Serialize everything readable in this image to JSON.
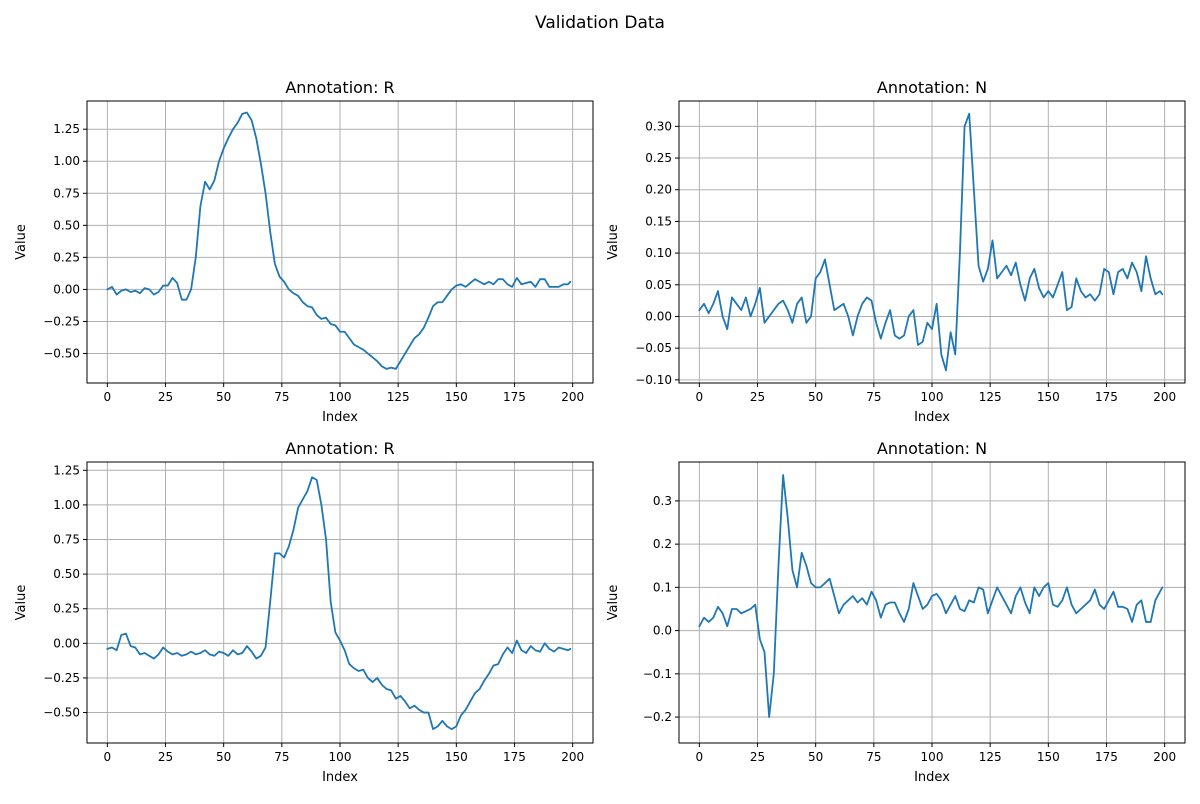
{
  "figure": {
    "suptitle": "Validation Data"
  },
  "chart_data": [
    {
      "type": "line",
      "title": "Annotation: R",
      "xlabel": "Index",
      "ylabel": "Value",
      "xlim": [
        -8.75,
        208.75
      ],
      "ylim": [
        -0.73,
        1.47
      ],
      "xticks": [
        0,
        25,
        50,
        75,
        100,
        125,
        150,
        175,
        200
      ],
      "xtick_labels": [
        "0",
        "25",
        "50",
        "75",
        "100",
        "125",
        "150",
        "175",
        "200"
      ],
      "yticks": [
        -0.5,
        -0.25,
        0.0,
        0.25,
        0.5,
        0.75,
        1.0,
        1.25
      ],
      "ytick_labels": [
        "−0.50",
        "−0.25",
        "0.00",
        "0.25",
        "0.50",
        "0.75",
        "1.00",
        "1.25"
      ],
      "grid": true,
      "series": [
        {
          "x": [
            0,
            2,
            4,
            6,
            8,
            10,
            12,
            14,
            16,
            18,
            20,
            22,
            24,
            26,
            28,
            30,
            32,
            34,
            36,
            38,
            40,
            42,
            44,
            46,
            48,
            50,
            52,
            54,
            56,
            58,
            60,
            62,
            64,
            66,
            68,
            70,
            72,
            74,
            76,
            78,
            80,
            82,
            84,
            86,
            88,
            90,
            92,
            94,
            96,
            98,
            100,
            102,
            104,
            106,
            108,
            110,
            112,
            114,
            116,
            118,
            120,
            122,
            124,
            126,
            128,
            130,
            132,
            134,
            136,
            138,
            140,
            142,
            144,
            146,
            148,
            150,
            152,
            154,
            156,
            158,
            160,
            162,
            164,
            166,
            168,
            170,
            172,
            174,
            176,
            178,
            180,
            182,
            184,
            186,
            188,
            190,
            192,
            194,
            196,
            198,
            199
          ],
          "y": [
            0.0,
            0.02,
            -0.04,
            -0.01,
            0.0,
            -0.02,
            -0.01,
            -0.03,
            0.01,
            0.0,
            -0.04,
            -0.02,
            0.03,
            0.03,
            0.09,
            0.05,
            -0.08,
            -0.08,
            0.0,
            0.25,
            0.65,
            0.84,
            0.78,
            0.85,
            1.0,
            1.1,
            1.18,
            1.25,
            1.3,
            1.37,
            1.38,
            1.32,
            1.18,
            0.98,
            0.75,
            0.45,
            0.2,
            0.1,
            0.06,
            0.0,
            -0.03,
            -0.05,
            -0.1,
            -0.13,
            -0.14,
            -0.2,
            -0.23,
            -0.22,
            -0.27,
            -0.28,
            -0.33,
            -0.33,
            -0.38,
            -0.43,
            -0.45,
            -0.47,
            -0.5,
            -0.53,
            -0.56,
            -0.6,
            -0.62,
            -0.61,
            -0.62,
            -0.56,
            -0.5,
            -0.44,
            -0.38,
            -0.35,
            -0.3,
            -0.22,
            -0.13,
            -0.1,
            -0.1,
            -0.05,
            0.0,
            0.03,
            0.04,
            0.02,
            0.05,
            0.08,
            0.06,
            0.04,
            0.06,
            0.04,
            0.08,
            0.08,
            0.04,
            0.02,
            0.09,
            0.04,
            0.05,
            0.06,
            0.02,
            0.08,
            0.08,
            0.02,
            0.02,
            0.02,
            0.04,
            0.04,
            0.06
          ]
        }
      ]
    },
    {
      "type": "line",
      "title": "Annotation: N",
      "xlabel": "Index",
      "ylabel": "Value",
      "xlim": [
        -8.75,
        208.75
      ],
      "ylim": [
        -0.105,
        0.34
      ],
      "xticks": [
        0,
        25,
        50,
        75,
        100,
        125,
        150,
        175,
        200
      ],
      "xtick_labels": [
        "0",
        "25",
        "50",
        "75",
        "100",
        "125",
        "150",
        "175",
        "200"
      ],
      "yticks": [
        -0.1,
        -0.05,
        0.0,
        0.05,
        0.1,
        0.15,
        0.2,
        0.25,
        0.3
      ],
      "ytick_labels": [
        "−0.10",
        "−0.05",
        "0.00",
        "0.05",
        "0.10",
        "0.15",
        "0.20",
        "0.25",
        "0.30"
      ],
      "grid": true,
      "series": [
        {
          "x": [
            0,
            2,
            4,
            6,
            8,
            10,
            12,
            14,
            16,
            18,
            20,
            22,
            24,
            26,
            28,
            30,
            32,
            34,
            36,
            38,
            40,
            42,
            44,
            46,
            48,
            50,
            52,
            54,
            56,
            58,
            60,
            62,
            64,
            66,
            68,
            70,
            72,
            74,
            76,
            78,
            80,
            82,
            84,
            86,
            88,
            90,
            92,
            94,
            96,
            98,
            100,
            102,
            104,
            106,
            108,
            110,
            112,
            114,
            116,
            118,
            120,
            122,
            124,
            126,
            128,
            130,
            132,
            134,
            136,
            138,
            140,
            142,
            144,
            146,
            148,
            150,
            152,
            154,
            156,
            158,
            160,
            162,
            164,
            166,
            168,
            170,
            172,
            174,
            176,
            178,
            180,
            182,
            184,
            186,
            188,
            190,
            192,
            194,
            196,
            198,
            199
          ],
          "y": [
            0.01,
            0.02,
            0.005,
            0.02,
            0.04,
            0.0,
            -0.02,
            0.03,
            0.02,
            0.01,
            0.03,
            0.0,
            0.02,
            0.045,
            -0.01,
            0.0,
            0.01,
            0.02,
            0.025,
            0.01,
            -0.01,
            0.02,
            0.03,
            -0.01,
            0.0,
            0.06,
            0.07,
            0.09,
            0.05,
            0.01,
            0.015,
            0.02,
            0.0,
            -0.03,
            0.0,
            0.02,
            0.03,
            0.025,
            -0.01,
            -0.035,
            -0.01,
            0.01,
            -0.03,
            -0.035,
            -0.03,
            0.0,
            0.01,
            -0.045,
            -0.04,
            -0.01,
            -0.02,
            0.02,
            -0.06,
            -0.085,
            -0.025,
            -0.06,
            0.1,
            0.3,
            0.32,
            0.2,
            0.08,
            0.055,
            0.075,
            0.12,
            0.06,
            0.07,
            0.08,
            0.065,
            0.085,
            0.05,
            0.025,
            0.06,
            0.075,
            0.045,
            0.03,
            0.04,
            0.03,
            0.05,
            0.07,
            0.01,
            0.015,
            0.06,
            0.04,
            0.03,
            0.035,
            0.025,
            0.035,
            0.075,
            0.07,
            0.035,
            0.07,
            0.075,
            0.06,
            0.085,
            0.07,
            0.04,
            0.095,
            0.06,
            0.035,
            0.04,
            0.035
          ]
        }
      ]
    },
    {
      "type": "line",
      "title": "Annotation: R",
      "xlabel": "Index",
      "ylabel": "Value",
      "xlim": [
        -8.75,
        208.75
      ],
      "ylim": [
        -0.72,
        1.31
      ],
      "xticks": [
        0,
        25,
        50,
        75,
        100,
        125,
        150,
        175,
        200
      ],
      "xtick_labels": [
        "0",
        "25",
        "50",
        "75",
        "100",
        "125",
        "150",
        "175",
        "200"
      ],
      "yticks": [
        -0.5,
        -0.25,
        0.0,
        0.25,
        0.5,
        0.75,
        1.0,
        1.25
      ],
      "ytick_labels": [
        "−0.50",
        "−0.25",
        "0.00",
        "0.25",
        "0.50",
        "0.75",
        "1.00",
        "1.25"
      ],
      "grid": true,
      "series": [
        {
          "x": [
            0,
            2,
            4,
            6,
            8,
            10,
            12,
            14,
            16,
            18,
            20,
            22,
            24,
            26,
            28,
            30,
            32,
            34,
            36,
            38,
            40,
            42,
            44,
            46,
            48,
            50,
            52,
            54,
            56,
            58,
            60,
            62,
            64,
            66,
            68,
            70,
            72,
            74,
            76,
            78,
            80,
            82,
            84,
            86,
            88,
            90,
            92,
            94,
            96,
            98,
            100,
            102,
            104,
            106,
            108,
            110,
            112,
            114,
            116,
            118,
            120,
            122,
            124,
            126,
            128,
            130,
            132,
            134,
            136,
            138,
            140,
            142,
            144,
            146,
            148,
            150,
            152,
            154,
            156,
            158,
            160,
            162,
            164,
            166,
            168,
            170,
            172,
            174,
            176,
            178,
            180,
            182,
            184,
            186,
            188,
            190,
            192,
            194,
            196,
            198,
            199
          ],
          "y": [
            -0.04,
            -0.03,
            -0.05,
            0.06,
            0.07,
            -0.02,
            -0.03,
            -0.08,
            -0.07,
            -0.09,
            -0.11,
            -0.08,
            -0.03,
            -0.06,
            -0.08,
            -0.07,
            -0.09,
            -0.08,
            -0.06,
            -0.08,
            -0.07,
            -0.05,
            -0.08,
            -0.09,
            -0.06,
            -0.07,
            -0.09,
            -0.05,
            -0.08,
            -0.07,
            -0.02,
            -0.06,
            -0.11,
            -0.09,
            -0.03,
            0.3,
            0.65,
            0.65,
            0.62,
            0.7,
            0.82,
            0.98,
            1.04,
            1.1,
            1.2,
            1.18,
            1.0,
            0.75,
            0.3,
            0.08,
            0.02,
            -0.05,
            -0.15,
            -0.18,
            -0.2,
            -0.19,
            -0.25,
            -0.28,
            -0.25,
            -0.3,
            -0.33,
            -0.34,
            -0.4,
            -0.38,
            -0.42,
            -0.47,
            -0.45,
            -0.48,
            -0.5,
            -0.5,
            -0.62,
            -0.6,
            -0.56,
            -0.6,
            -0.62,
            -0.6,
            -0.52,
            -0.48,
            -0.42,
            -0.36,
            -0.33,
            -0.27,
            -0.22,
            -0.16,
            -0.15,
            -0.08,
            -0.03,
            -0.07,
            0.02,
            -0.05,
            -0.07,
            -0.02,
            -0.05,
            -0.06,
            0.0,
            -0.04,
            -0.06,
            -0.03,
            -0.04,
            -0.05,
            -0.04
          ]
        }
      ]
    },
    {
      "type": "line",
      "title": "Annotation: N",
      "xlabel": "Index",
      "ylabel": "Value",
      "xlim": [
        -8.75,
        208.75
      ],
      "ylim": [
        -0.26,
        0.39
      ],
      "xticks": [
        0,
        25,
        50,
        75,
        100,
        125,
        150,
        175,
        200
      ],
      "xtick_labels": [
        "0",
        "25",
        "50",
        "75",
        "100",
        "125",
        "150",
        "175",
        "200"
      ],
      "yticks": [
        -0.2,
        -0.1,
        0.0,
        0.1,
        0.2,
        0.3
      ],
      "ytick_labels": [
        "−0.2",
        "−0.1",
        "0.0",
        "0.1",
        "0.2",
        "0.3"
      ],
      "grid": true,
      "series": [
        {
          "x": [
            0,
            2,
            4,
            6,
            8,
            10,
            12,
            14,
            16,
            18,
            20,
            22,
            24,
            26,
            28,
            30,
            32,
            34,
            36,
            38,
            40,
            42,
            44,
            46,
            48,
            50,
            52,
            54,
            56,
            58,
            60,
            62,
            64,
            66,
            68,
            70,
            72,
            74,
            76,
            78,
            80,
            82,
            84,
            86,
            88,
            90,
            92,
            94,
            96,
            98,
            100,
            102,
            104,
            106,
            108,
            110,
            112,
            114,
            116,
            118,
            120,
            122,
            124,
            126,
            128,
            130,
            132,
            134,
            136,
            138,
            140,
            142,
            144,
            146,
            148,
            150,
            152,
            154,
            156,
            158,
            160,
            162,
            164,
            166,
            168,
            170,
            172,
            174,
            176,
            178,
            180,
            182,
            184,
            186,
            188,
            190,
            192,
            194,
            196,
            198,
            199
          ],
          "y": [
            0.01,
            0.03,
            0.02,
            0.03,
            0.055,
            0.04,
            0.01,
            0.05,
            0.05,
            0.04,
            0.045,
            0.05,
            0.06,
            -0.02,
            -0.05,
            -0.2,
            -0.1,
            0.15,
            0.36,
            0.26,
            0.14,
            0.1,
            0.18,
            0.15,
            0.11,
            0.1,
            0.1,
            0.11,
            0.12,
            0.08,
            0.04,
            0.06,
            0.07,
            0.08,
            0.065,
            0.075,
            0.06,
            0.09,
            0.07,
            0.03,
            0.06,
            0.065,
            0.065,
            0.04,
            0.02,
            0.05,
            0.11,
            0.08,
            0.05,
            0.06,
            0.08,
            0.085,
            0.07,
            0.04,
            0.06,
            0.08,
            0.05,
            0.045,
            0.07,
            0.065,
            0.1,
            0.095,
            0.04,
            0.07,
            0.1,
            0.08,
            0.06,
            0.04,
            0.08,
            0.1,
            0.065,
            0.04,
            0.1,
            0.08,
            0.1,
            0.11,
            0.06,
            0.055,
            0.07,
            0.1,
            0.06,
            0.04,
            0.05,
            0.06,
            0.07,
            0.095,
            0.06,
            0.05,
            0.07,
            0.09,
            0.055,
            0.055,
            0.05,
            0.02,
            0.06,
            0.07,
            0.02,
            0.02,
            0.07,
            0.09,
            0.1
          ]
        }
      ]
    }
  ]
}
